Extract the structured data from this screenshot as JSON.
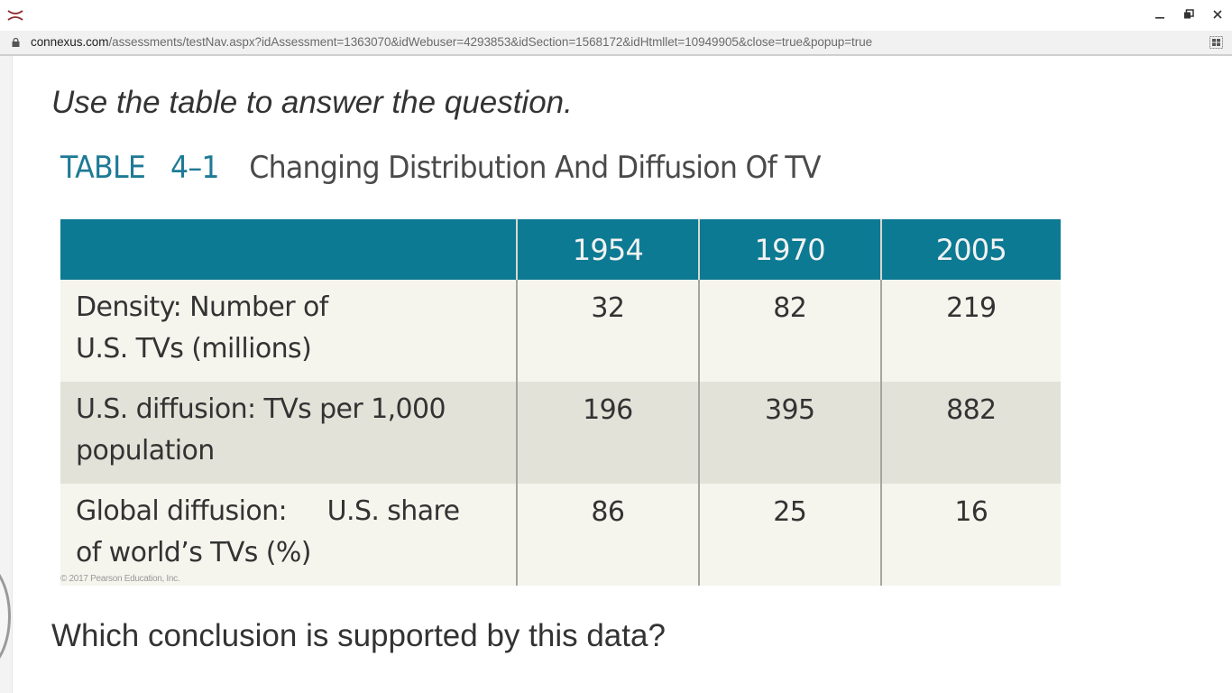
{
  "browser": {
    "url_domain": "connexus.com",
    "url_path": "/assessments/testNav.aspx?idAssessment=1363070&idWebuser=4293853&idSection=1568172&idHtmllet=10949905&close=true&popup=true",
    "icons": {
      "app": "connexus-logo-icon",
      "lock": "lock-icon",
      "extension": "qr-grid-icon",
      "minimize": "minimize-icon",
      "restore": "restore-icon",
      "close": "close-icon"
    }
  },
  "content": {
    "instruction": "Use the table to answer the question.",
    "table_number": "TABLE   4–1",
    "table_caption": "Changing Distribution And Diffusion Of TV",
    "table": {
      "columns": [
        "",
        "1954",
        "1970",
        "2005"
      ],
      "rows": [
        {
          "label_line1": "Density: Number of",
          "label_line2": "U.S. TVs (millions)",
          "values": [
            "32",
            "82",
            "219"
          ]
        },
        {
          "label_line1": "U.S. diffusion: TVs per 1,000",
          "label_line2": "population",
          "values": [
            "196",
            "395",
            "882"
          ]
        },
        {
          "label_line1": "Global diffusion:     U.S. share",
          "label_line2": "of world’s TVs (%)",
          "values": [
            "86",
            "25",
            "16"
          ]
        }
      ]
    },
    "credit": "© 2017 Pearson Education, Inc.",
    "question": "Which conclusion is supported by this data?"
  },
  "colors": {
    "header_teal": "#0d7a93",
    "title_blue": "#1e7a95",
    "row_light": "#f5f4ed",
    "row_shaded": "#e3e2d9",
    "app_icon_red": "#8b2a2a"
  }
}
